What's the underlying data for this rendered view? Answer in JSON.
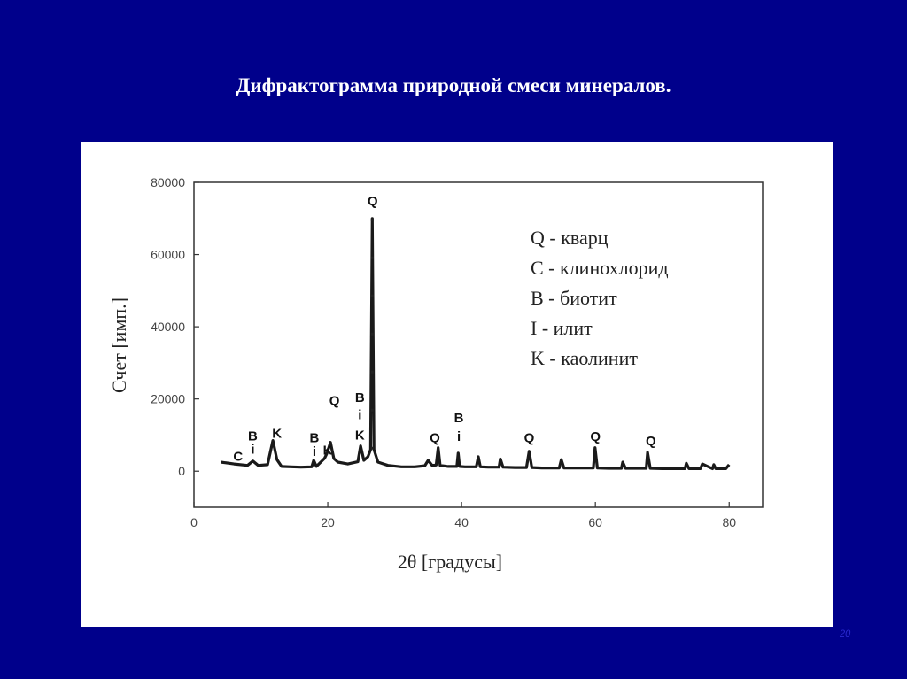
{
  "slide": {
    "title": "Дифрактограмма природной смеси минералов.",
    "page_number": "20",
    "background_color": "#00008b",
    "title_color": "#ffffff"
  },
  "chart_data": {
    "type": "line",
    "title": "",
    "xlabel": "2θ [градусы]",
    "ylabel": "Счет [имп.]",
    "xlim": [
      0,
      85
    ],
    "ylim": [
      -10000,
      80000
    ],
    "x_ticks": [
      0,
      20,
      40,
      60,
      80
    ],
    "y_ticks": [
      0,
      20000,
      40000,
      60000,
      80000
    ],
    "grid": false,
    "legend_position": "top-right",
    "legend": [
      "Q - кварц",
      "C - клинохлорид",
      "B - биотит",
      "I  - илит",
      "K - каолинит"
    ],
    "series": [
      {
        "x": [
          4,
          6,
          8,
          8.8,
          9.6,
          11,
          11.8,
          12.4,
          13.1,
          14.5,
          16,
          17.6,
          17.9,
          18.3,
          19.5,
          19.9,
          20.4,
          20.9,
          21.5,
          23,
          24.5,
          24.9,
          25.4,
          26,
          26.4,
          26.65,
          26.9,
          27.5,
          29,
          31,
          33,
          34.5,
          35,
          35.6,
          36.2,
          36.5,
          36.8,
          38,
          39.3,
          39.5,
          39.7,
          40.5,
          42.2,
          42.5,
          42.8,
          44,
          45.6,
          45.8,
          46.2,
          48,
          49.7,
          50.1,
          50.5,
          52,
          54.6,
          54.9,
          55.3,
          57,
          59.7,
          59.95,
          60.3,
          62,
          63.9,
          64.1,
          64.5,
          66,
          67.6,
          67.8,
          68.2,
          70,
          73.4,
          73.6,
          74,
          75.5,
          75.7,
          76,
          77.5,
          77.7,
          78,
          79.5,
          80
        ],
        "y": [
          2500,
          2000,
          1600,
          2800,
          1600,
          1800,
          8500,
          3200,
          1300,
          1200,
          1100,
          1200,
          3000,
          1300,
          3500,
          5000,
          8000,
          3500,
          2500,
          2000,
          2600,
          7000,
          3000,
          4000,
          6000,
          70000,
          6000,
          2500,
          1600,
          1200,
          1200,
          1500,
          3000,
          1600,
          1700,
          6500,
          1600,
          1300,
          1300,
          5000,
          1300,
          1200,
          1200,
          4000,
          1200,
          1100,
          1100,
          3400,
          1100,
          1000,
          1000,
          5500,
          1000,
          900,
          900,
          3200,
          900,
          900,
          900,
          6500,
          900,
          800,
          800,
          2500,
          800,
          800,
          800,
          5200,
          800,
          700,
          700,
          2200,
          700,
          700,
          700,
          2000,
          700,
          1800,
          700,
          700,
          1800
        ]
      }
    ],
    "peak_labels": [
      {
        "x": 6.6,
        "y": 2900,
        "text": "C"
      },
      {
        "x": 8.8,
        "y": 8500,
        "text": "B"
      },
      {
        "x": 8.8,
        "y": 4800,
        "text": "i"
      },
      {
        "x": 12.4,
        "y": 9200,
        "text": "K"
      },
      {
        "x": 18.0,
        "y": 8000,
        "text": "B"
      },
      {
        "x": 18.0,
        "y": 4200,
        "text": "i"
      },
      {
        "x": 20.0,
        "y": 4600,
        "text": "K"
      },
      {
        "x": 21.0,
        "y": 18300,
        "text": "Q"
      },
      {
        "x": 24.8,
        "y": 19200,
        "text": "B"
      },
      {
        "x": 24.8,
        "y": 14400,
        "text": "i"
      },
      {
        "x": 24.8,
        "y": 8800,
        "text": "K"
      },
      {
        "x": 26.7,
        "y": 73600,
        "text": "Q"
      },
      {
        "x": 36.0,
        "y": 8000,
        "text": "Q"
      },
      {
        "x": 39.6,
        "y": 13600,
        "text": "B"
      },
      {
        "x": 39.6,
        "y": 8400,
        "text": "i"
      },
      {
        "x": 50.1,
        "y": 8000,
        "text": "Q"
      },
      {
        "x": 60.0,
        "y": 8400,
        "text": "Q"
      },
      {
        "x": 68.3,
        "y": 7200,
        "text": "Q"
      }
    ]
  }
}
